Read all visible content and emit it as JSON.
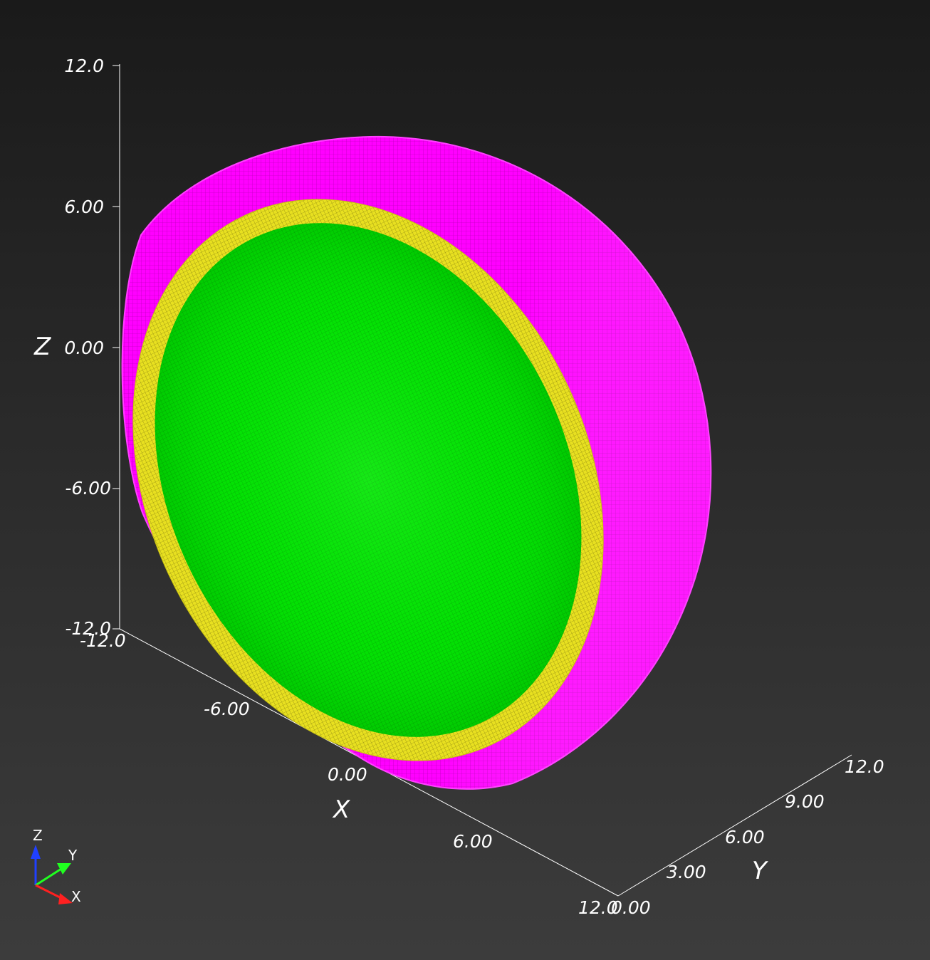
{
  "axes": {
    "z": {
      "title": "Z",
      "ticks": [
        "12.0",
        "6.00",
        "0.00",
        "-6.00",
        "-12.0"
      ]
    },
    "x": {
      "title": "X",
      "ticks": [
        "-12.0",
        "-6.00",
        "0.00",
        "6.00",
        "12.0"
      ]
    },
    "y": {
      "title": "Y",
      "ticks": [
        "0.00",
        "3.00",
        "6.00",
        "9.00",
        "12.0"
      ]
    }
  },
  "orientation_triad": {
    "z": "Z",
    "y": "Y",
    "x": "X"
  },
  "colors": {
    "outer_shell": "#ff00ff",
    "middle_ring": "#e8e020",
    "inner_core": "#00ee00",
    "background_top": "#1a1a1a",
    "background_bottom": "#3c3c3c",
    "axis_line": "#ffffff",
    "triad_x": "#ff2020",
    "triad_y": "#20ff20",
    "triad_z": "#2040ff"
  }
}
